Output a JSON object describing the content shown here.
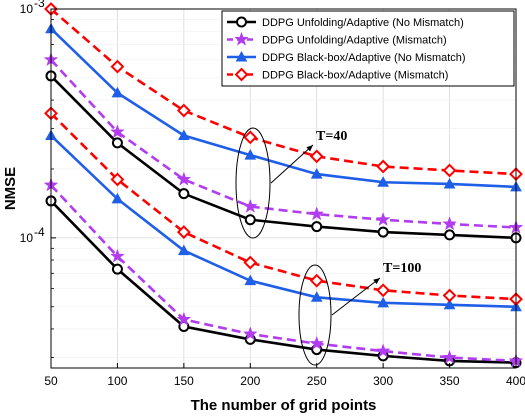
{
  "chart_data": {
    "type": "line",
    "xlabel": "The number of grid points",
    "ylabel": "NMSE",
    "x": [
      50,
      100,
      150,
      200,
      250,
      300,
      350,
      400
    ],
    "xlim": [
      50,
      400
    ],
    "ylim": [
      2.7e-05,
      0.001
    ],
    "y_scale": "log",
    "y_ticks": [
      {
        "value": 0.0001,
        "base": "10",
        "exp": "-4"
      },
      {
        "value": 0.001,
        "base": "10",
        "exp": "-3"
      }
    ],
    "grid": true,
    "legend_position": "top-right",
    "series": [
      {
        "name": "DDPG Unfolding/Adaptive (No Mismatch)",
        "group": "T=40",
        "color": "#000000",
        "dashed": false,
        "marker": "circle",
        "values": [
          0.00051,
          0.00026,
          0.000156,
          0.00012,
          0.000112,
          0.000106,
          0.000103,
          0.0001
        ]
      },
      {
        "name": "DDPG Unfolding/Adaptive (Mismatch)",
        "group": "T=40",
        "color": "#b23cf0",
        "dashed": true,
        "marker": "star",
        "values": [
          0.0006,
          0.00029,
          0.00018,
          0.000137,
          0.000127,
          0.00012,
          0.000115,
          0.000111
        ]
      },
      {
        "name": "DDPG Black-box/Adaptive (No Mismatch)",
        "group": "T=40",
        "color": "#1f5fe8",
        "dashed": false,
        "marker": "triangle",
        "values": [
          0.00082,
          0.00043,
          0.00028,
          0.00023,
          0.00019,
          0.000175,
          0.000172,
          0.000167
        ]
      },
      {
        "name": "DDPG Black-box/Adaptive (Mismatch)",
        "group": "T=40",
        "color": "#ff0000",
        "dashed": true,
        "marker": "diamond",
        "values": [
          0.001,
          0.00056,
          0.00036,
          0.000275,
          0.000227,
          0.000205,
          0.000197,
          0.00019
        ]
      },
      {
        "name": "DDPG Unfolding/Adaptive (No Mismatch)",
        "group": "T=100",
        "color": "#000000",
        "dashed": false,
        "marker": "circle",
        "values": [
          0.000145,
          7.3e-05,
          4.1e-05,
          3.6e-05,
          3.25e-05,
          3.05e-05,
          2.9e-05,
          2.85e-05
        ]
      },
      {
        "name": "DDPG Unfolding/Adaptive (Mismatch)",
        "group": "T=100",
        "color": "#b23cf0",
        "dashed": true,
        "marker": "star",
        "values": [
          0.00017,
          8.3e-05,
          4.4e-05,
          3.8e-05,
          3.45e-05,
          3.2e-05,
          3e-05,
          2.9e-05
        ]
      },
      {
        "name": "DDPG Black-box/Adaptive (No Mismatch)",
        "group": "T=100",
        "color": "#1f5fe8",
        "dashed": false,
        "marker": "triangle",
        "values": [
          0.00028,
          0.000148,
          8.8e-05,
          6.5e-05,
          5.5e-05,
          5.2e-05,
          5.1e-05,
          5e-05
        ]
      },
      {
        "name": "DDPG Black-box/Adaptive (Mismatch)",
        "group": "T=100",
        "color": "#ff0000",
        "dashed": true,
        "marker": "diamond",
        "values": [
          0.00035,
          0.00018,
          0.000106,
          7.8e-05,
          6.5e-05,
          5.9e-05,
          5.6e-05,
          5.4e-05
        ]
      }
    ],
    "annotations": [
      {
        "text": "T=40",
        "x_at": 200,
        "y_at": 0.00017
      },
      {
        "text": "T=100",
        "x_at": 250,
        "y_at": 4.3e-05
      }
    ]
  }
}
